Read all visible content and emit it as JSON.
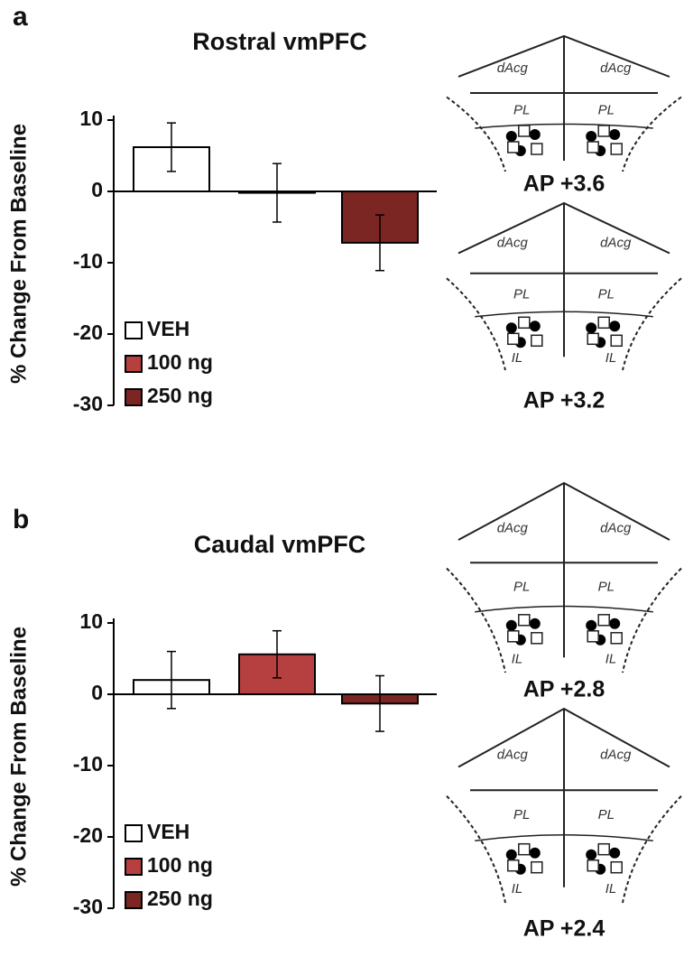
{
  "chart_data": [
    {
      "type": "bar",
      "panel_label": "a",
      "title": "Rostral vmPFC",
      "ylabel": "% Change From Baseline",
      "ylim": [
        -30,
        10
      ],
      "yticks": [
        -30,
        -20,
        -10,
        0,
        10
      ],
      "legend": "lower left",
      "series": [
        {
          "name": "VEH",
          "color": "#ffffff",
          "values": [
            6.2
          ],
          "errors": [
            3.4
          ]
        },
        {
          "name": "100 ng",
          "color": "#b5403f",
          "values": [
            -0.2
          ],
          "errors": [
            4.1
          ]
        },
        {
          "name": "250 ng",
          "color": "#7b2623",
          "values": [
            -7.2
          ],
          "errors": [
            3.9
          ]
        }
      ],
      "sections": [
        {
          "label": "AP +3.6",
          "regions": [
            "dAcg",
            "dAcg",
            "PL",
            "PL"
          ]
        },
        {
          "label": "AP +3.2",
          "regions": [
            "dAcg",
            "dAcg",
            "PL",
            "PL",
            "IL",
            "IL"
          ]
        }
      ]
    },
    {
      "type": "bar",
      "panel_label": "b",
      "title": "Caudal vmPFC",
      "ylabel": "% Change From Baseline",
      "ylim": [
        -30,
        10
      ],
      "yticks": [
        -30,
        -20,
        -10,
        0,
        10
      ],
      "legend": "lower left",
      "series": [
        {
          "name": "VEH",
          "color": "#ffffff",
          "values": [
            2.0
          ],
          "errors": [
            4.0
          ]
        },
        {
          "name": "100 ng",
          "color": "#b5403f",
          "values": [
            5.6
          ],
          "errors": [
            3.3
          ]
        },
        {
          "name": "250 ng",
          "color": "#7b2623",
          "values": [
            -1.3
          ],
          "errors": [
            3.9
          ]
        }
      ],
      "sections": [
        {
          "label": "AP +2.8",
          "regions": [
            "dAcg",
            "dAcg",
            "PL",
            "PL",
            "IL",
            "IL"
          ]
        },
        {
          "label": "AP +2.4",
          "regions": [
            "dAcg",
            "dAcg",
            "PL",
            "PL",
            "IL",
            "IL"
          ]
        }
      ]
    }
  ]
}
